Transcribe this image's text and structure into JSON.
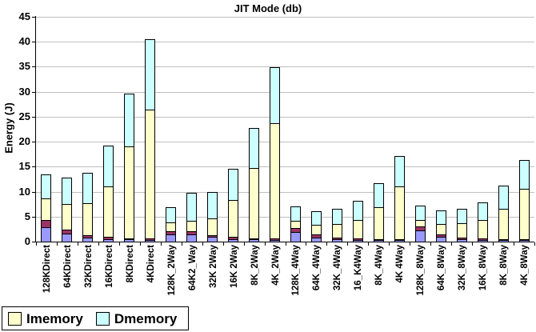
{
  "title": "JIT Mode (db)",
  "y_axis": {
    "label": "Energy (J)",
    "min": 0,
    "max": 45,
    "tick_step": 5,
    "ticks": [
      0,
      5,
      10,
      15,
      20,
      25,
      30,
      35,
      40,
      45
    ]
  },
  "legend": [
    {
      "label": "Imemory",
      "color": "#FFFFCC"
    },
    {
      "label": "Dmemory",
      "color": "#CCFFFF"
    }
  ],
  "colors": {
    "background": "#FFFFFF",
    "gridline": "#C0C0C0",
    "axis": "#000000",
    "bar_border": "#000000",
    "text": "#000000"
  },
  "chart_data": {
    "type": "bar",
    "stacked": true,
    "grid": true,
    "legend_position": "bottom-left",
    "title": "JIT Mode (db)",
    "xlabel": "",
    "ylabel": "Energy (J)",
    "ylim": [
      0,
      45
    ],
    "ytick_step": 5,
    "categories": [
      "128KDirect",
      "64KDirect",
      "32KDirect",
      "16KDirect",
      "8KDirect",
      "4KDirect",
      "128K_2Way",
      "64K2_Way",
      "32K 2Way",
      "16K 2Way",
      "8K_2Way",
      "4K_2Way",
      "128K_4Way",
      "64K_4Way",
      "32K_4Way",
      "16_K4Way",
      "8K_4Way",
      "4K 4Way",
      "128K_8Way",
      "64K_8Way",
      "32K_8Way",
      "16K_8Way",
      "8K_8Way",
      "4K_8Way"
    ],
    "series": [
      {
        "name": "",
        "in_legend": false,
        "color": "#9999FF",
        "values": [
          2.9,
          1.6,
          0.7,
          0.4,
          0.25,
          0.15,
          1.4,
          1.3,
          0.8,
          0.4,
          0.25,
          0.15,
          2.0,
          0.8,
          0.35,
          0.25,
          0.15,
          0.1,
          2.3,
          0.9,
          0.4,
          0.25,
          0.15,
          0.1
        ]
      },
      {
        "name": "",
        "in_legend": false,
        "color": "#993366",
        "values": [
          1.3,
          0.6,
          0.3,
          0.2,
          0.15,
          0.1,
          0.5,
          0.55,
          0.3,
          0.2,
          0.15,
          0.1,
          0.55,
          0.45,
          0.2,
          0.15,
          0.1,
          0.1,
          0.6,
          0.4,
          0.2,
          0.15,
          0.1,
          0.1
        ]
      },
      {
        "name": "Imemory",
        "in_legend": true,
        "color": "#FFFFCC",
        "values": [
          4.3,
          5.2,
          6.5,
          10.3,
          18.7,
          26.1,
          1.9,
          2.15,
          3.3,
          7.5,
          14.2,
          23.5,
          1.55,
          2.0,
          2.85,
          3.7,
          6.5,
          10.7,
          1.3,
          2.0,
          3.0,
          3.8,
          6.15,
          10.2
        ]
      },
      {
        "name": "Dmemory",
        "in_legend": true,
        "color": "#CCFFFF",
        "values": [
          4.9,
          5.4,
          6.2,
          8.3,
          10.6,
          14.1,
          3.1,
          5.8,
          5.5,
          6.4,
          8.1,
          11.2,
          2.9,
          2.85,
          3.2,
          4.0,
          5.0,
          6.2,
          3.0,
          2.9,
          3.0,
          3.6,
          4.8,
          5.9
        ]
      }
    ]
  }
}
